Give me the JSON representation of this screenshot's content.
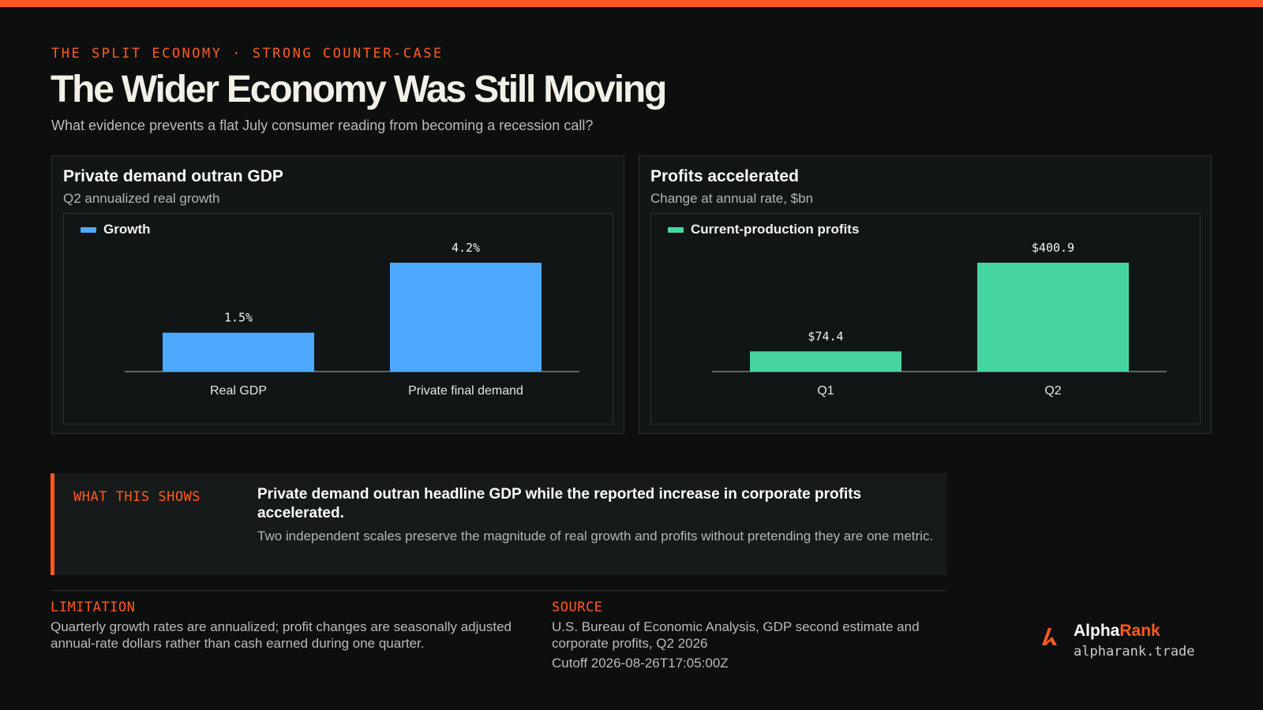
{
  "header": {
    "eyebrow": "THE SPLIT ECONOMY · STRONG COUNTER-CASE",
    "title": "The Wider Economy Was Still Moving",
    "subtitle": "What evidence prevents a flat July consumer reading from becoming a recession call?"
  },
  "colors": {
    "accent": "#ff5a1f",
    "growth_bar": "#4da8ff",
    "profits_bar": "#45d6a0"
  },
  "chart_data": [
    {
      "type": "bar",
      "title": "Private demand outran GDP",
      "subtitle": "Q2 annualized real growth",
      "categories": [
        "Real GDP",
        "Private final demand"
      ],
      "series": [
        {
          "name": "Growth",
          "values": [
            1.5,
            4.2
          ],
          "labels": [
            "1.5%",
            "4.2%"
          ]
        }
      ],
      "ylim": [
        0,
        4.2
      ],
      "grid": false,
      "legend": "top-left",
      "color": "#4da8ff"
    },
    {
      "type": "bar",
      "title": "Profits accelerated",
      "subtitle": "Change at annual rate, $bn",
      "categories": [
        "Q1",
        "Q2"
      ],
      "series": [
        {
          "name": "Current-production profits",
          "values": [
            74.4,
            400.9
          ],
          "labels": [
            "$74.4",
            "$400.9"
          ]
        }
      ],
      "ylim": [
        0,
        400.9
      ],
      "grid": false,
      "legend": "top-left",
      "color": "#45d6a0"
    }
  ],
  "callout": {
    "label": "WHAT THIS SHOWS",
    "headline": "Private demand outran headline GDP while the reported increase in corporate profits accelerated.",
    "body": "Two independent scales preserve the magnitude of real growth and profits without pretending they are one metric."
  },
  "footer": {
    "limitation_label": "LIMITATION",
    "limitation_text": "Quarterly growth rates are annualized; profit changes are seasonally adjusted annual-rate dollars rather than cash earned during one quarter.",
    "source_label": "SOURCE",
    "source_text": "U.S. Bureau of Economic Analysis, GDP second estimate and corporate profits, Q2 2026",
    "cutoff": "Cutoff 2026-08-26T17:05:00Z"
  },
  "brand": {
    "name_part1": "Alpha",
    "name_part2": "Rank",
    "url": "alpharank.trade",
    "logo_icon": "alpharank-logo-icon"
  }
}
